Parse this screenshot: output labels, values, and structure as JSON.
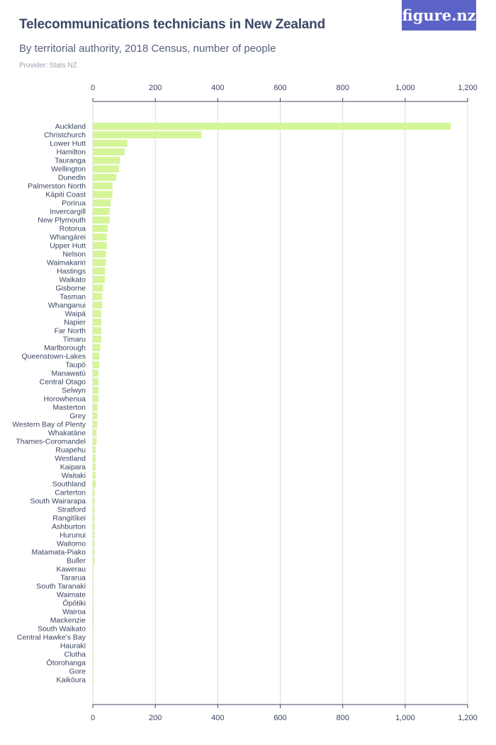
{
  "header": {
    "title": "Telecommunications technicians in New Zealand",
    "subtitle": "By territorial authority, 2018 Census, number of people",
    "provider": "Provider: Stats NZ",
    "logo_text": "figure.nz"
  },
  "colors": {
    "bar": "#d5f59b",
    "grid": "#d9dbe0",
    "axis": "#3c4560",
    "logo_bg": "#5b64c6"
  },
  "chart_data": {
    "type": "bar",
    "orientation": "horizontal",
    "title": "Telecommunications technicians in New Zealand",
    "subtitle": "By territorial authority, 2018 Census, number of people",
    "xlim": [
      0,
      1200
    ],
    "x_ticks": [
      0,
      200,
      400,
      600,
      800,
      1000,
      1200
    ],
    "x_tick_labels": [
      "0",
      "200",
      "400",
      "600",
      "800",
      "1,000",
      "1,200"
    ],
    "grid": true,
    "categories": [
      "Auckland",
      "Christchurch",
      "Lower Hutt",
      "Hamilton",
      "Tauranga",
      "Wellington",
      "Dunedin",
      "Palmerston North",
      "Kāpiti Coast",
      "Porirua",
      "Invercargill",
      "New Plymouth",
      "Rotorua",
      "Whangārei",
      "Upper Hutt",
      "Nelson",
      "Waimakariri",
      "Hastings",
      "Waikato",
      "Gisborne",
      "Tasman",
      "Whanganui",
      "Waipā",
      "Napier",
      "Far North",
      "Timaru",
      "Marlborough",
      "Queenstown-Lakes",
      "Taupō",
      "Manawatū",
      "Central Otago",
      "Selwyn",
      "Horowhenua",
      "Masterton",
      "Grey",
      "Western Bay of Plenty",
      "Whakatāne",
      "Thames-Coromandel",
      "Ruapehu",
      "Westland",
      "Kaipara",
      "Waitaki",
      "Southland",
      "Carterton",
      "South Wairarapa",
      "Stratford",
      "Rangitīkei",
      "Ashburton",
      "Hurunui",
      "Waitomo",
      "Matamata-Piako",
      "Buller",
      "Kawerau",
      "Tararua",
      "South Taranaki",
      "Waimate",
      "Ōpōtiki",
      "Wairoa",
      "Mackenzie",
      "South Waikato",
      "Central Hawke's Bay",
      "Hauraki",
      "Clutha",
      "Ōtorohanga",
      "Gore",
      "Kaikōura"
    ],
    "values": [
      1146,
      348,
      111,
      102,
      87,
      84,
      75,
      63,
      63,
      57,
      54,
      54,
      48,
      45,
      45,
      42,
      42,
      39,
      39,
      33,
      30,
      30,
      27,
      27,
      27,
      27,
      24,
      21,
      21,
      18,
      18,
      18,
      18,
      15,
      15,
      15,
      12,
      12,
      9,
      9,
      9,
      9,
      9,
      6,
      6,
      6,
      6,
      6,
      6,
      6,
      6,
      6,
      3,
      3,
      3,
      3,
      3,
      3,
      3,
      3,
      3,
      3,
      3,
      3,
      3,
      3
    ]
  }
}
